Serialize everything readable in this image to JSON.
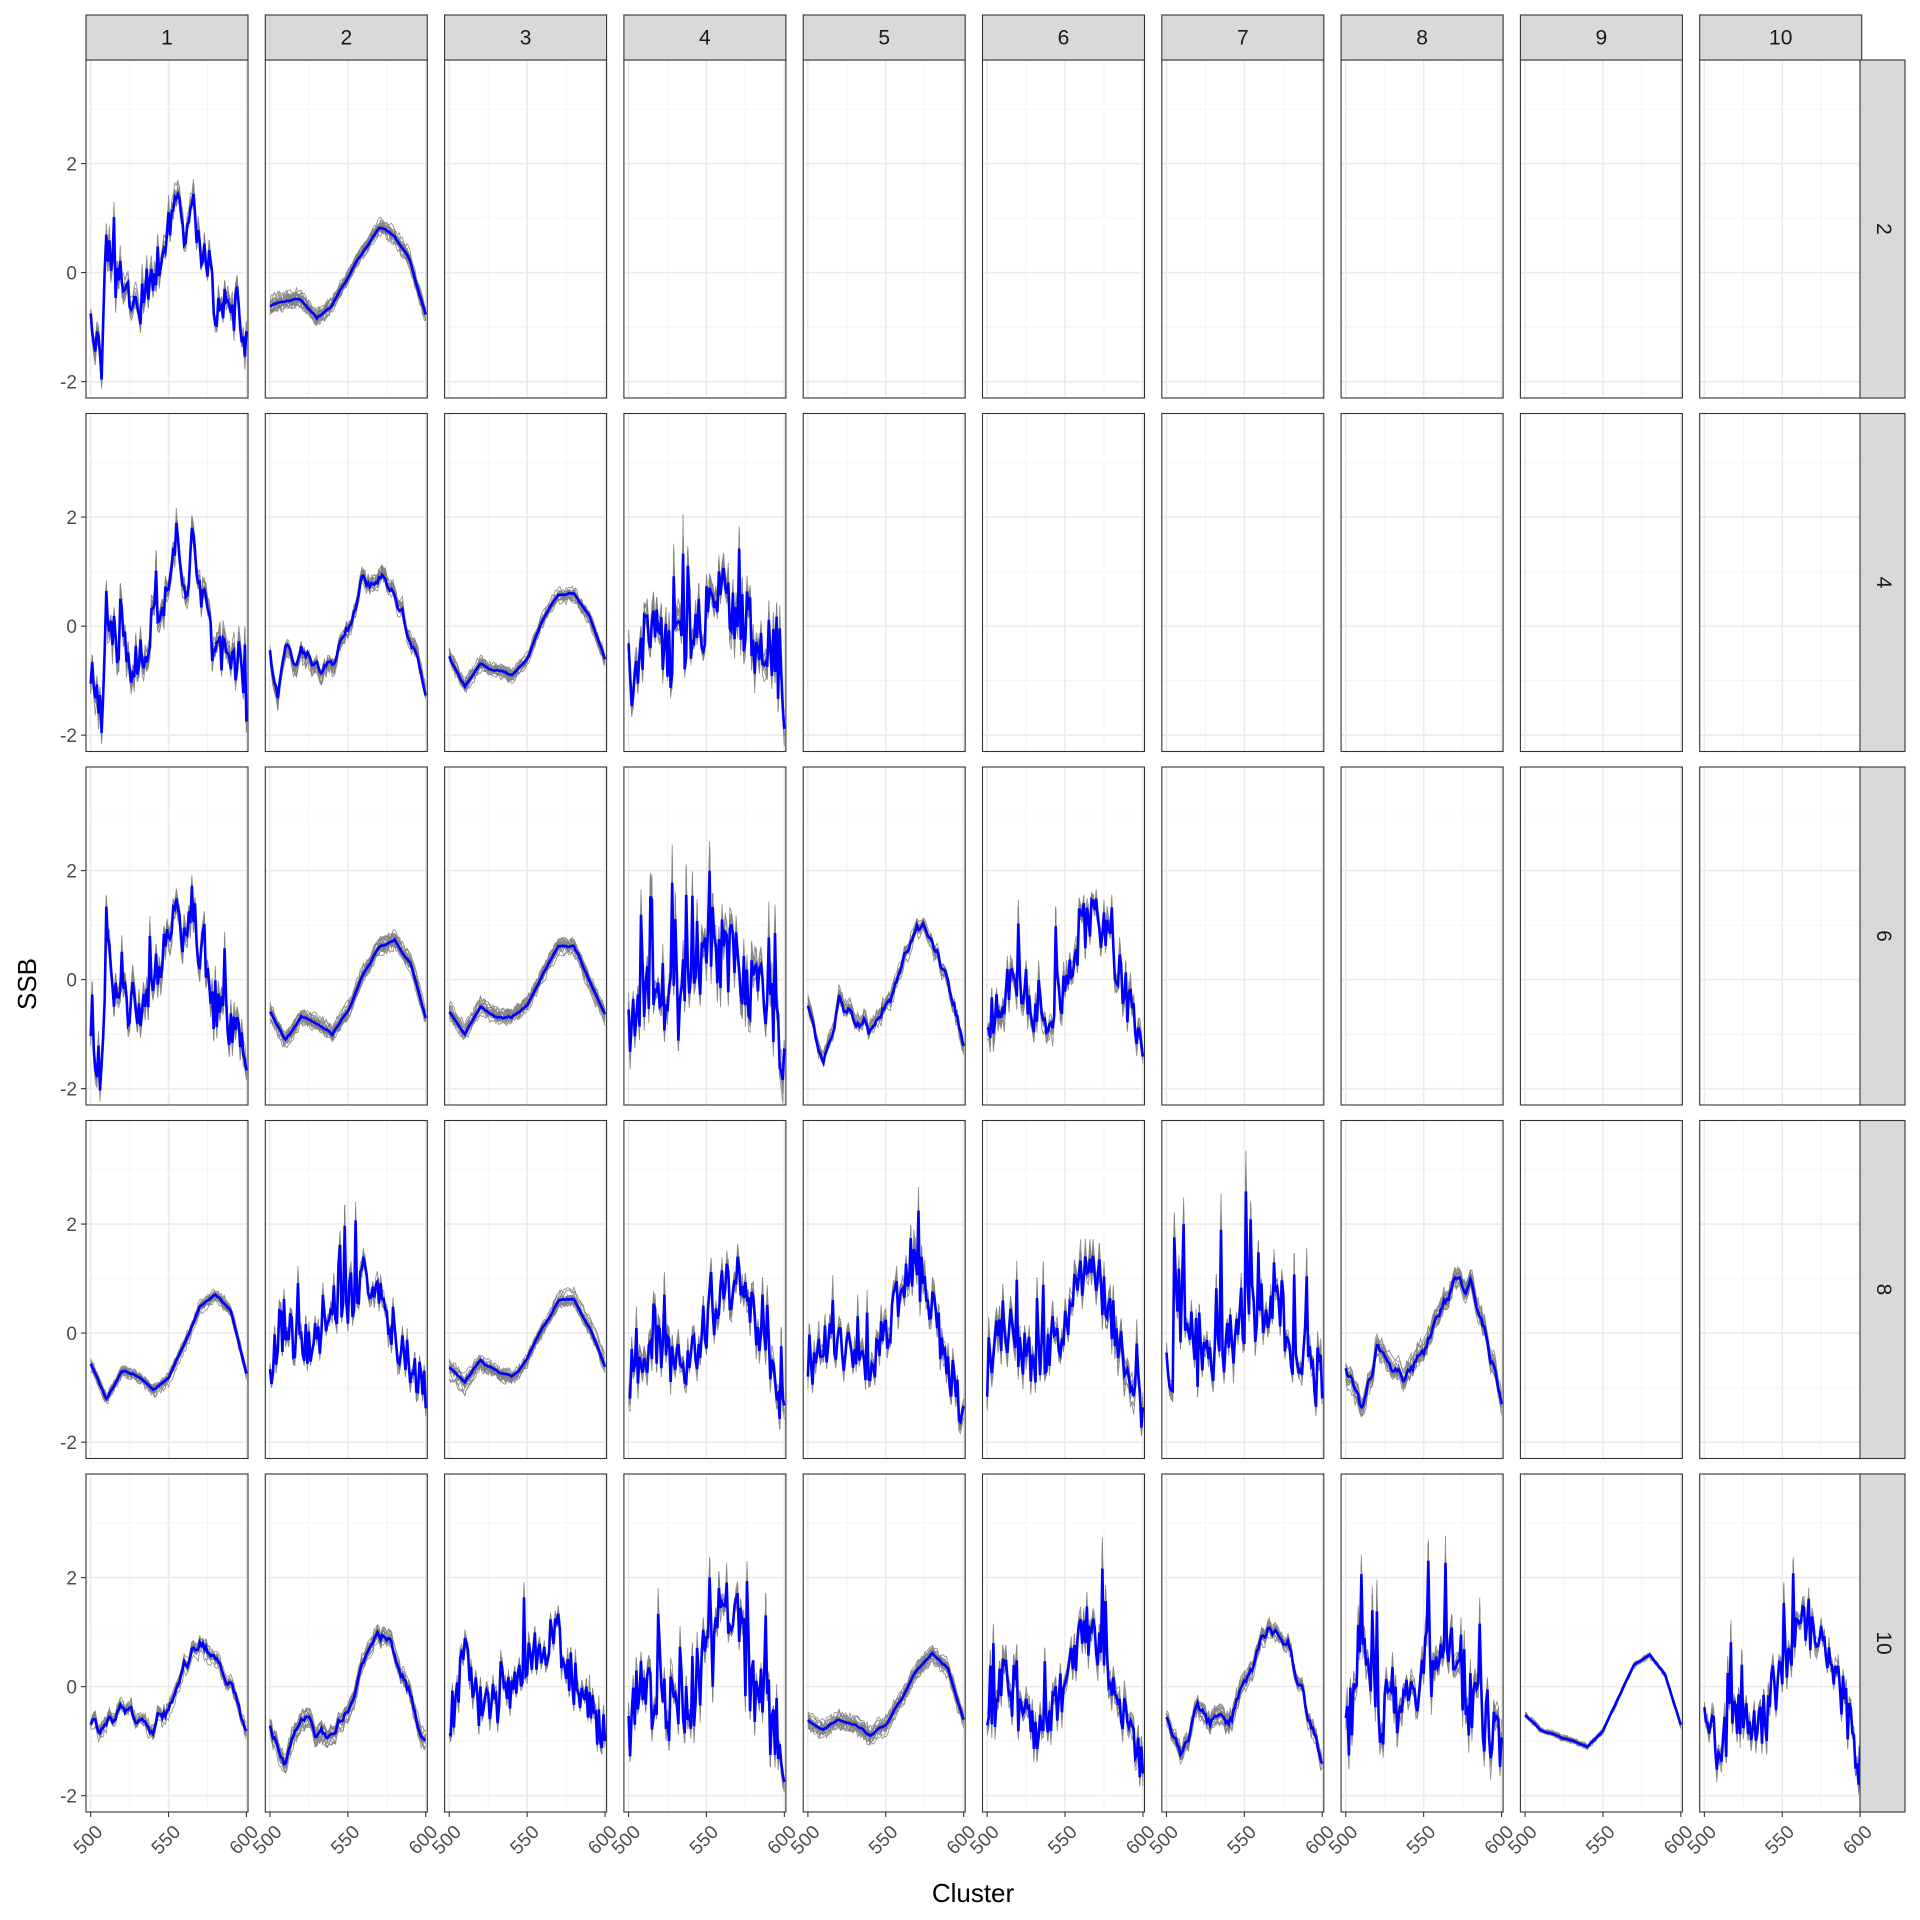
{
  "chart_data": {
    "type": "line",
    "facet_columns": [
      "1",
      "2",
      "3",
      "4",
      "5",
      "6",
      "7",
      "8",
      "9",
      "10"
    ],
    "facet_rows": [
      "2",
      "4",
      "6",
      "8",
      "10"
    ],
    "xlabel": "Cluster",
    "ylabel": "SSB",
    "xlim": [
      497,
      601
    ],
    "ylim": [
      -2.3,
      3.9
    ],
    "x_ticks": [
      500,
      550,
      600
    ],
    "y_ticks": [
      -2,
      0,
      2
    ],
    "grid": true,
    "colors": {
      "members": "#808080",
      "mean": "#0000ff",
      "strip": "#d9d9d9"
    },
    "series": [
      {
        "name": "",
        "row": "2",
        "col": "1",
        "shape": "spiky_early",
        "amp": 0.9,
        "members": 16,
        "spread": 0.45,
        "x": [
          500,
          503,
          507,
          510,
          513,
          517,
          520,
          525,
          530,
          535,
          540,
          545,
          550,
          555,
          560,
          565,
          570,
          575,
          580,
          585,
          590,
          595,
          600
        ],
        "values": [
          -0.8,
          -1.4,
          -1.7,
          0.8,
          0.2,
          -0.3,
          0.2,
          -0.6,
          -0.8,
          -0.3,
          0.0,
          0.3,
          0.8,
          1.5,
          0.5,
          1.4,
          0.5,
          0.2,
          -0.6,
          -0.5,
          -0.8,
          -0.6,
          -1.3
        ]
      },
      {
        "name": "",
        "row": "2",
        "col": "2",
        "shape": "smooth",
        "amp": 0.2,
        "members": 20,
        "spread": 0.35,
        "x": [
          500,
          510,
          520,
          530,
          540,
          550,
          560,
          570,
          580,
          590,
          600
        ],
        "values": [
          -0.6,
          -0.5,
          -0.5,
          -0.8,
          -0.6,
          -0.1,
          0.4,
          0.8,
          0.7,
          0.2,
          -0.8
        ]
      },
      {
        "name": "",
        "row": "4",
        "col": "1",
        "shape": "spiky_early",
        "amp": 0.8,
        "members": 16,
        "spread": 0.4,
        "x": [
          500,
          503,
          507,
          510,
          513,
          517,
          520,
          525,
          530,
          535,
          540,
          545,
          550,
          555,
          560,
          565,
          570,
          575,
          580,
          585,
          590,
          595,
          600
        ],
        "values": [
          -0.8,
          -1.3,
          -1.7,
          0.6,
          0.1,
          -0.4,
          0.1,
          -0.6,
          -0.8,
          -0.4,
          0.0,
          0.3,
          0.9,
          1.6,
          0.5,
          1.5,
          0.6,
          0.2,
          -0.6,
          -0.5,
          -0.9,
          -0.6,
          -1.4
        ]
      },
      {
        "name": "",
        "row": "4",
        "col": "2",
        "shape": "medium",
        "amp": 0.35,
        "members": 18,
        "spread": 0.4,
        "x": [
          500,
          505,
          510,
          515,
          520,
          530,
          540,
          550,
          560,
          570,
          580,
          590,
          600
        ],
        "values": [
          -0.6,
          -1.4,
          -0.3,
          -0.6,
          -0.5,
          -0.8,
          -0.6,
          0.0,
          0.9,
          0.8,
          0.5,
          -0.2,
          -1.2
        ]
      },
      {
        "name": "",
        "row": "4",
        "col": "3",
        "shape": "smooth",
        "amp": 0.15,
        "members": 20,
        "spread": 0.3,
        "x": [
          500,
          510,
          520,
          530,
          540,
          550,
          560,
          570,
          580,
          590,
          600
        ],
        "values": [
          -0.6,
          -1.1,
          -0.7,
          -0.8,
          -0.9,
          -0.6,
          0.1,
          0.6,
          0.6,
          0.2,
          -0.6
        ]
      },
      {
        "name": "",
        "row": "4",
        "col": "4",
        "shape": "very_spiky",
        "amp": 1.6,
        "members": 14,
        "spread": 0.5,
        "x": [
          500,
          510,
          520,
          530,
          540,
          550,
          560,
          570,
          580,
          590,
          600
        ],
        "values": [
          -1.0,
          -0.2,
          -0.3,
          -0.6,
          -0.3,
          0.2,
          0.5,
          0.4,
          -0.3,
          -0.5,
          -1.2
        ]
      },
      {
        "name": "",
        "row": "6",
        "col": "1",
        "shape": "spiky_early",
        "amp": 0.8,
        "members": 16,
        "spread": 0.4,
        "x": [
          500,
          503,
          507,
          510,
          513,
          517,
          520,
          525,
          530,
          535,
          540,
          545,
          550,
          555,
          560,
          565,
          570,
          575,
          580,
          585,
          590,
          595,
          600
        ],
        "values": [
          -0.8,
          -1.4,
          -1.8,
          0.7,
          0.1,
          -0.4,
          0.2,
          -0.6,
          -0.8,
          -0.4,
          0.0,
          0.4,
          0.9,
          1.5,
          0.6,
          1.4,
          0.5,
          0.2,
          -0.7,
          -0.5,
          -0.9,
          -0.7,
          -1.5
        ]
      },
      {
        "name": "",
        "row": "6",
        "col": "2",
        "shape": "smooth",
        "amp": 0.15,
        "members": 20,
        "spread": 0.35,
        "x": [
          500,
          510,
          520,
          530,
          540,
          550,
          560,
          570,
          580,
          590,
          600
        ],
        "values": [
          -0.6,
          -1.1,
          -0.7,
          -0.8,
          -1.0,
          -0.6,
          0.1,
          0.6,
          0.7,
          0.3,
          -0.7
        ]
      },
      {
        "name": "",
        "row": "6",
        "col": "3",
        "shape": "smooth",
        "amp": 0.2,
        "members": 20,
        "spread": 0.35,
        "x": [
          500,
          510,
          520,
          530,
          540,
          550,
          560,
          570,
          580,
          590,
          600
        ],
        "values": [
          -0.6,
          -1.0,
          -0.5,
          -0.7,
          -0.7,
          -0.5,
          0.1,
          0.6,
          0.6,
          0.0,
          -0.6
        ]
      },
      {
        "name": "",
        "row": "6",
        "col": "4",
        "shape": "very_spiky",
        "amp": 1.6,
        "members": 14,
        "spread": 0.5,
        "x": [
          500,
          510,
          520,
          530,
          540,
          550,
          560,
          570,
          580,
          590,
          600
        ],
        "values": [
          -1.0,
          -0.2,
          -0.3,
          -0.6,
          -0.3,
          0.2,
          0.5,
          0.4,
          -0.3,
          -0.5,
          -1.3
        ]
      },
      {
        "name": "",
        "row": "6",
        "col": "5",
        "shape": "medium",
        "amp": 0.3,
        "members": 18,
        "spread": 0.35,
        "x": [
          500,
          510,
          520,
          530,
          540,
          550,
          560,
          570,
          580,
          590,
          600
        ],
        "values": [
          -0.6,
          -1.6,
          -0.4,
          -0.7,
          -0.9,
          -0.6,
          0.2,
          0.9,
          0.7,
          0.0,
          -1.2
        ]
      },
      {
        "name": "",
        "row": "6",
        "col": "6",
        "shape": "spiky",
        "amp": 0.7,
        "members": 16,
        "spread": 0.45,
        "x": [
          500,
          510,
          520,
          530,
          540,
          550,
          560,
          570,
          580,
          590,
          600
        ],
        "values": [
          -0.8,
          -0.2,
          -0.3,
          -0.7,
          -0.7,
          -0.2,
          0.9,
          1.2,
          0.6,
          -0.4,
          -1.3
        ]
      },
      {
        "name": "",
        "row": "8",
        "col": "1",
        "shape": "smooth",
        "amp": 0.1,
        "members": 20,
        "spread": 0.3,
        "x": [
          500,
          510,
          520,
          530,
          540,
          550,
          560,
          570,
          580,
          590,
          600
        ],
        "values": [
          -0.6,
          -1.2,
          -0.7,
          -0.8,
          -1.0,
          -0.8,
          -0.2,
          0.5,
          0.7,
          0.4,
          -0.7
        ]
      },
      {
        "name": "",
        "row": "8",
        "col": "2",
        "shape": "spiky",
        "amp": 0.9,
        "members": 12,
        "spread": 0.3,
        "x": [
          500,
          510,
          520,
          530,
          540,
          550,
          560,
          570,
          580,
          590,
          600
        ],
        "values": [
          -0.7,
          0.3,
          -0.3,
          -0.2,
          0.2,
          0.6,
          0.9,
          0.8,
          0.0,
          -0.6,
          -1.0
        ]
      },
      {
        "name": "",
        "row": "8",
        "col": "3",
        "shape": "smooth",
        "amp": 0.2,
        "members": 20,
        "spread": 0.35,
        "x": [
          500,
          510,
          520,
          530,
          540,
          550,
          560,
          570,
          580,
          590,
          600
        ],
        "values": [
          -0.6,
          -0.9,
          -0.5,
          -0.7,
          -0.8,
          -0.5,
          0.1,
          0.6,
          0.6,
          0.1,
          -0.6
        ]
      },
      {
        "name": "",
        "row": "8",
        "col": "4",
        "shape": "spiky",
        "amp": 0.8,
        "members": 16,
        "spread": 0.4,
        "x": [
          500,
          510,
          520,
          530,
          540,
          550,
          560,
          570,
          580,
          590,
          600
        ],
        "values": [
          -0.8,
          -0.3,
          -0.2,
          -0.6,
          -0.5,
          0.0,
          0.7,
          1.0,
          0.3,
          -0.5,
          -1.4
        ]
      },
      {
        "name": "",
        "row": "8",
        "col": "5",
        "shape": "spiky",
        "amp": 0.7,
        "members": 16,
        "spread": 0.4,
        "x": [
          500,
          510,
          520,
          530,
          540,
          550,
          560,
          570,
          580,
          590,
          600
        ],
        "values": [
          -0.7,
          -0.3,
          -0.1,
          -0.6,
          -0.7,
          0.0,
          0.8,
          1.1,
          0.4,
          -0.6,
          -1.5
        ]
      },
      {
        "name": "",
        "row": "8",
        "col": "6",
        "shape": "spiky",
        "amp": 0.9,
        "members": 16,
        "spread": 0.45,
        "x": [
          500,
          510,
          520,
          530,
          540,
          550,
          560,
          570,
          580,
          590,
          600
        ],
        "values": [
          -0.8,
          0.2,
          -0.2,
          -0.6,
          -0.4,
          0.2,
          0.9,
          1.1,
          0.3,
          -0.5,
          -1.5
        ]
      },
      {
        "name": "",
        "row": "8",
        "col": "7",
        "shape": "very_spiky",
        "amp": 1.5,
        "members": 12,
        "spread": 0.4,
        "x": [
          500,
          510,
          520,
          530,
          540,
          550,
          560,
          570,
          580,
          590,
          600
        ],
        "values": [
          -1.0,
          0.4,
          -0.3,
          -0.5,
          0.0,
          0.3,
          0.6,
          0.8,
          -0.4,
          -0.6,
          -1.1
        ]
      },
      {
        "name": "",
        "row": "8",
        "col": "8",
        "shape": "medium",
        "amp": 0.35,
        "members": 18,
        "spread": 0.4,
        "x": [
          500,
          510,
          520,
          530,
          540,
          550,
          560,
          570,
          580,
          590,
          600
        ],
        "values": [
          -0.6,
          -1.4,
          -0.4,
          -0.6,
          -0.8,
          -0.4,
          0.4,
          1.0,
          0.8,
          0.0,
          -1.2
        ]
      },
      {
        "name": "",
        "row": "10",
        "col": "1",
        "shape": "medium",
        "amp": 0.25,
        "members": 18,
        "spread": 0.35,
        "x": [
          500,
          510,
          520,
          530,
          540,
          550,
          560,
          570,
          580,
          590,
          600
        ],
        "values": [
          -0.6,
          -0.8,
          -0.4,
          -0.5,
          -0.7,
          -0.4,
          0.4,
          0.8,
          0.6,
          0.0,
          -0.8
        ]
      },
      {
        "name": "",
        "row": "10",
        "col": "2",
        "shape": "medium",
        "amp": 0.3,
        "members": 18,
        "spread": 0.35,
        "x": [
          500,
          510,
          520,
          530,
          540,
          550,
          560,
          570,
          580,
          590,
          600
        ],
        "values": [
          -0.6,
          -1.5,
          -0.5,
          -0.8,
          -0.9,
          -0.4,
          0.5,
          1.0,
          0.6,
          -0.1,
          -1.1
        ]
      },
      {
        "name": "",
        "row": "10",
        "col": "3",
        "shape": "spiky",
        "amp": 0.8,
        "members": 12,
        "spread": 0.3,
        "x": [
          500,
          510,
          520,
          530,
          540,
          550,
          560,
          570,
          580,
          590,
          600
        ],
        "values": [
          -0.7,
          0.5,
          -0.4,
          -0.3,
          0.0,
          0.4,
          0.8,
          0.9,
          0.1,
          -0.5,
          -0.9
        ]
      },
      {
        "name": "",
        "row": "10",
        "col": "4",
        "shape": "very_spiky",
        "amp": 1.1,
        "members": 12,
        "spread": 0.35,
        "x": [
          500,
          510,
          520,
          530,
          540,
          550,
          560,
          570,
          580,
          590,
          600
        ],
        "values": [
          -0.9,
          0.1,
          -0.5,
          -0.5,
          -0.2,
          0.4,
          0.9,
          1.0,
          0.0,
          -0.5,
          -1.2
        ]
      },
      {
        "name": "",
        "row": "10",
        "col": "5",
        "shape": "smooth",
        "amp": 0.15,
        "members": 20,
        "spread": 0.35,
        "x": [
          500,
          510,
          520,
          530,
          540,
          550,
          560,
          570,
          580,
          590,
          600
        ],
        "values": [
          -0.6,
          -0.8,
          -0.6,
          -0.7,
          -0.9,
          -0.7,
          -0.2,
          0.3,
          0.6,
          0.3,
          -0.6
        ]
      },
      {
        "name": "",
        "row": "10",
        "col": "6",
        "shape": "spiky",
        "amp": 0.8,
        "members": 14,
        "spread": 0.4,
        "x": [
          500,
          510,
          520,
          530,
          540,
          550,
          560,
          570,
          580,
          590,
          600
        ],
        "values": [
          -0.9,
          0.2,
          -0.4,
          -0.8,
          -0.6,
          0.1,
          1.0,
          0.9,
          0.2,
          -0.6,
          -1.5
        ]
      },
      {
        "name": "",
        "row": "10",
        "col": "7",
        "shape": "medium",
        "amp": 0.35,
        "members": 18,
        "spread": 0.4,
        "x": [
          500,
          510,
          520,
          530,
          540,
          550,
          560,
          570,
          580,
          590,
          600
        ],
        "values": [
          -0.7,
          -1.3,
          -0.4,
          -0.7,
          -0.6,
          0.0,
          0.8,
          1.1,
          0.6,
          -0.4,
          -1.3
        ]
      },
      {
        "name": "",
        "row": "10",
        "col": "8",
        "shape": "very_spiky",
        "amp": 1.5,
        "members": 12,
        "spread": 0.4,
        "x": [
          500,
          510,
          520,
          530,
          540,
          550,
          560,
          570,
          580,
          590,
          600
        ],
        "values": [
          -1.0,
          0.5,
          -0.4,
          -0.5,
          -0.2,
          0.3,
          0.6,
          0.7,
          -0.3,
          -0.6,
          -1.2
        ]
      },
      {
        "name": "",
        "row": "10",
        "col": "9",
        "shape": "smooth",
        "amp": 0.05,
        "members": 14,
        "spread": 0.15,
        "x": [
          500,
          510,
          520,
          530,
          540,
          550,
          560,
          570,
          580,
          590,
          600
        ],
        "values": [
          -0.5,
          -0.8,
          -0.9,
          -1.0,
          -1.1,
          -0.8,
          -0.2,
          0.4,
          0.6,
          0.2,
          -0.7
        ]
      },
      {
        "name": "",
        "row": "10",
        "col": "10",
        "shape": "spiky",
        "amp": 0.6,
        "members": 14,
        "spread": 0.35,
        "x": [
          500,
          510,
          520,
          530,
          540,
          550,
          560,
          570,
          580,
          590,
          600
        ],
        "values": [
          -0.6,
          -1.2,
          -0.4,
          -0.8,
          -0.6,
          0.2,
          1.0,
          1.1,
          0.5,
          -0.3,
          -1.5
        ]
      }
    ]
  }
}
